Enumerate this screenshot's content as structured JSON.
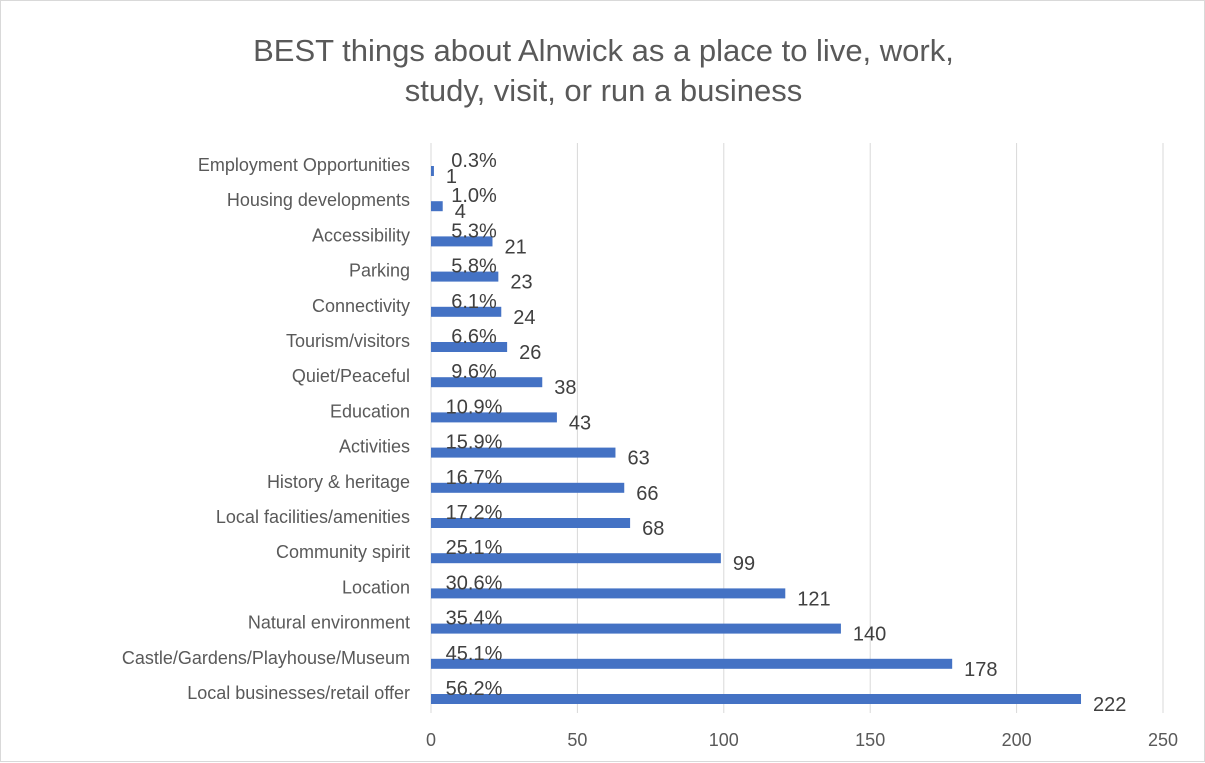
{
  "chart_data": {
    "type": "bar",
    "orientation": "horizontal",
    "title_lines": [
      "BEST things about Alnwick as a place to live, work,",
      "study, visit, or run a business"
    ],
    "categories": [
      "Employment Opportunities",
      "Housing developments",
      "Accessibility",
      "Parking",
      "Connectivity",
      "Tourism/visitors",
      "Quiet/Peaceful",
      "Education",
      "Activities",
      "History & heritage",
      "Local facilities/amenities",
      "Community spirit",
      "Location",
      "Natural environment",
      "Castle/Gardens/Playhouse/Museum",
      "Local businesses/retail offer"
    ],
    "series": [
      {
        "values": [
          1,
          4,
          21,
          23,
          24,
          26,
          38,
          43,
          63,
          66,
          68,
          99,
          121,
          140,
          178,
          222
        ],
        "labels": [
          "1",
          "4",
          "21",
          "23",
          "24",
          "26",
          "38",
          "43",
          "63",
          "66",
          "68",
          "99",
          "121",
          "140",
          "178",
          "222"
        ],
        "color": "#4472c4"
      },
      {
        "values": [
          0.3,
          1.0,
          5.3,
          5.8,
          6.1,
          6.6,
          9.6,
          10.9,
          15.9,
          16.7,
          17.2,
          25.1,
          30.6,
          35.4,
          45.1,
          56.2
        ],
        "labels": [
          "0.3%",
          "1.0%",
          "5.3%",
          "5.8%",
          "6.1%",
          "6.6%",
          "9.6%",
          "10.9%",
          "15.9%",
          "16.7%",
          "17.2%",
          "25.1%",
          "30.6%",
          "35.4%",
          "45.1%",
          "56.2%"
        ],
        "color": "#ed7d31"
      }
    ],
    "x_ticks": [
      "0",
      "50",
      "100",
      "150",
      "200",
      "250"
    ],
    "xlim": [
      0,
      250
    ],
    "grid": true,
    "colors": {
      "bar": "#4472c4",
      "grid": "#d9d9d9",
      "text": "#595959"
    }
  }
}
